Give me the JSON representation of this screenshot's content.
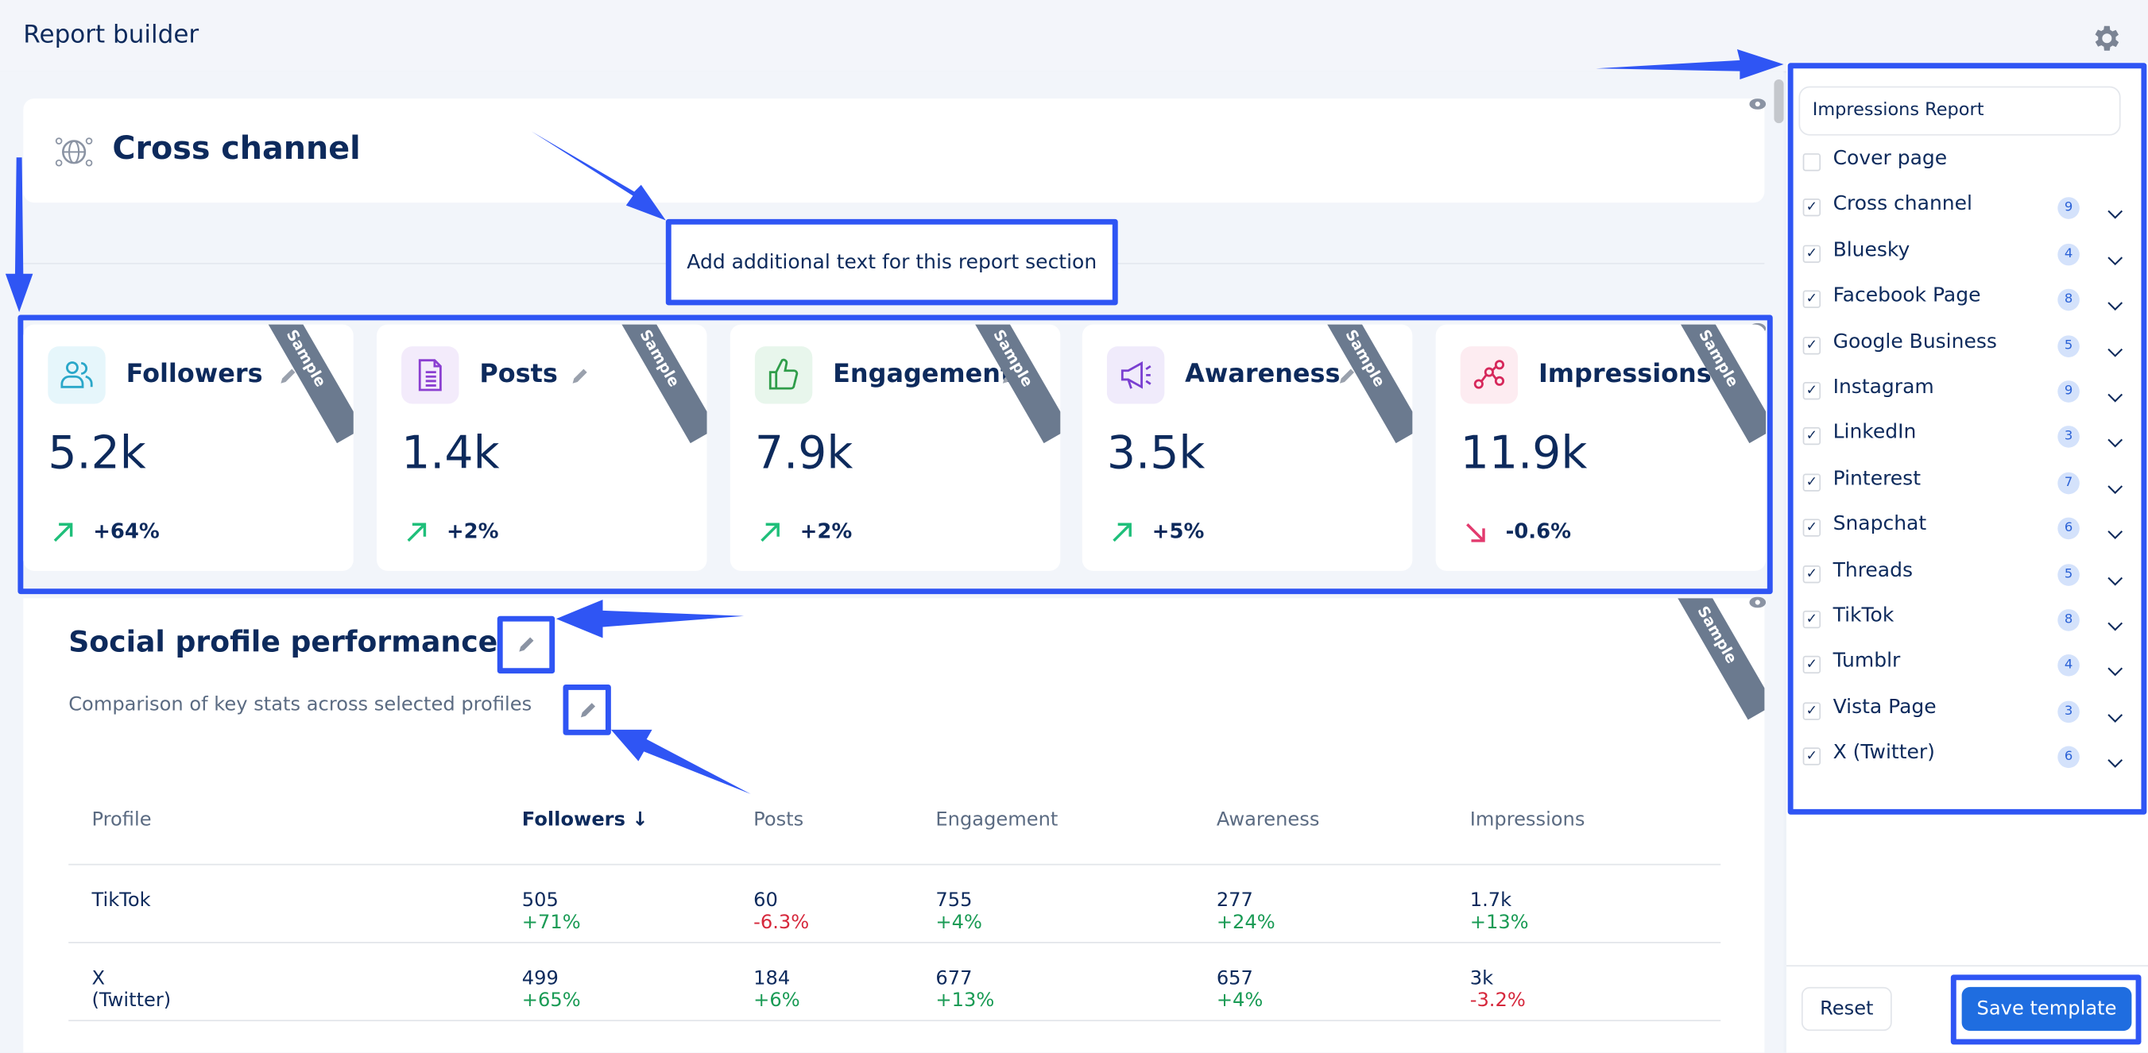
{
  "header": {
    "title": "Report builder",
    "settings_icon": "gear-icon"
  },
  "section": {
    "title": "Cross channel",
    "icon": "globe-network-icon",
    "add_text_label": "Add additional text for this report section"
  },
  "kpis": [
    {
      "label": "Followers",
      "value": "5.2k",
      "change": "+64%",
      "trend": "up",
      "ribbon": "Sample",
      "icon": "users-icon",
      "icon_color": "#2aa7c9",
      "icon_bg": "#e6f6fb"
    },
    {
      "label": "Posts",
      "value": "1.4k",
      "change": "+2%",
      "trend": "up",
      "ribbon": "Sample",
      "icon": "document-icon",
      "icon_color": "#8b3fd1",
      "icon_bg": "#f3ebfb"
    },
    {
      "label": "Engagement",
      "value": "7.9k",
      "change": "+2%",
      "trend": "up",
      "ribbon": "Sample",
      "icon": "thumbs-up-icon",
      "icon_color": "#2f9d4a",
      "icon_bg": "#e8f6ec"
    },
    {
      "label": "Awareness",
      "value": "3.5k",
      "change": "+5%",
      "trend": "up",
      "ribbon": "Sample",
      "icon": "megaphone-icon",
      "icon_color": "#7a3fd1",
      "icon_bg": "#f0ebfb"
    },
    {
      "label": "Impressions",
      "value": "11.9k",
      "change": "-0.6%",
      "trend": "down",
      "ribbon": "Sample",
      "icon": "network-nodes-icon",
      "icon_color": "#d6285b",
      "icon_bg": "#fdecf1"
    }
  ],
  "profile_performance": {
    "title": "Social profile performance",
    "subtitle": "Comparison of key stats across selected profiles",
    "ribbon": "Sample",
    "columns": [
      "Profile",
      "Followers",
      "Posts",
      "Engagement",
      "Awareness",
      "Impressions"
    ],
    "sorted_column": "Followers",
    "rows": [
      {
        "profile": "TikTok",
        "cells": [
          [
            "505",
            "+71%"
          ],
          [
            "60",
            "-6.3%"
          ],
          [
            "755",
            "+4%"
          ],
          [
            "277",
            "+24%"
          ],
          [
            "1.7k",
            "+13%"
          ]
        ]
      },
      {
        "profile": "X (Twitter)",
        "cells": [
          [
            "499",
            "+65%"
          ],
          [
            "184",
            "+6%"
          ],
          [
            "677",
            "+13%"
          ],
          [
            "657",
            "+4%"
          ],
          [
            "3k",
            "-3.2%"
          ]
        ]
      }
    ]
  },
  "right_panel": {
    "report_name": "Impressions Report",
    "items": [
      {
        "label": "Cover page",
        "checked": false
      },
      {
        "label": "Cross channel",
        "checked": true,
        "count": "9"
      },
      {
        "label": "Bluesky",
        "checked": true,
        "count": "4"
      },
      {
        "label": "Facebook Page",
        "checked": true,
        "count": "8"
      },
      {
        "label": "Google Business",
        "checked": true,
        "count": "5"
      },
      {
        "label": "Instagram",
        "checked": true,
        "count": "9"
      },
      {
        "label": "LinkedIn",
        "checked": true,
        "count": "3"
      },
      {
        "label": "Pinterest",
        "checked": true,
        "count": "7"
      },
      {
        "label": "Snapchat",
        "checked": true,
        "count": "6"
      },
      {
        "label": "Threads",
        "checked": true,
        "count": "5"
      },
      {
        "label": "TikTok",
        "checked": true,
        "count": "8"
      },
      {
        "label": "Tumblr",
        "checked": true,
        "count": "4"
      },
      {
        "label": "Vista Page",
        "checked": true,
        "count": "3"
      },
      {
        "label": "X (Twitter)",
        "checked": true,
        "count": "6"
      }
    ],
    "reset_label": "Reset",
    "save_label": "Save template"
  },
  "colors": {
    "accent": "#1f6de0",
    "annotation": "#2f55f4",
    "positive": "#1a9b55",
    "negative": "#d6283c",
    "text": "#0d2a5c"
  }
}
